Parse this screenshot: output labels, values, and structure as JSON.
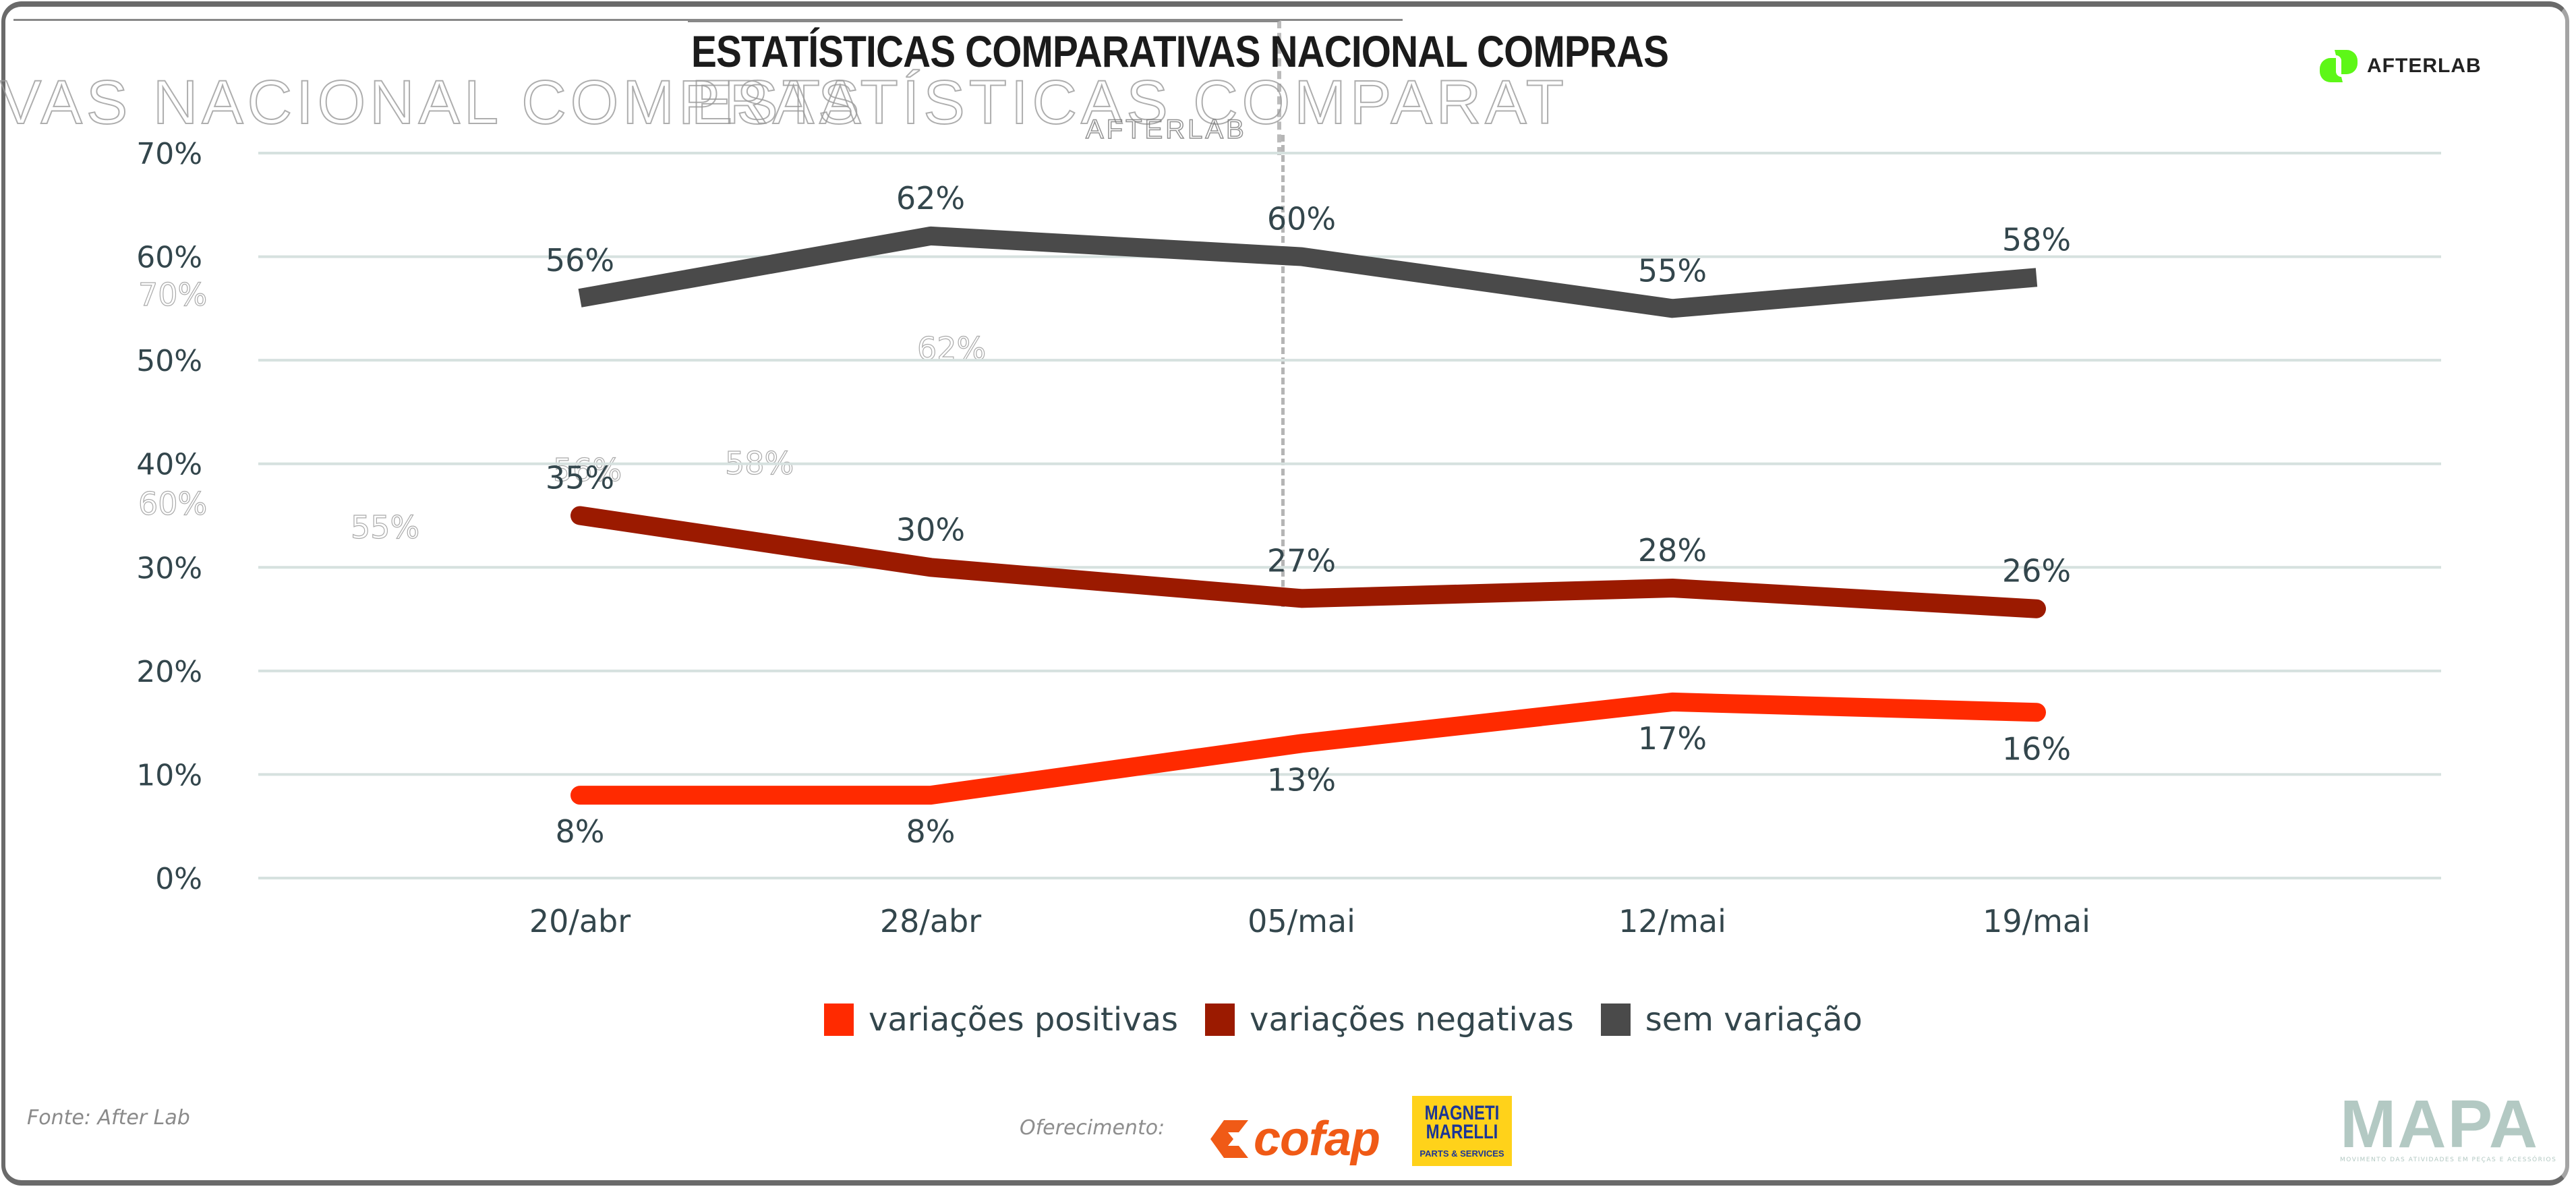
{
  "title": "ESTATÍSTICAS COMPARATIVAS NACIONAL COMPRAS",
  "brand": {
    "afterlab_label": "AFTERLAB",
    "afterlab_color": "#5df717"
  },
  "ghost_text": {
    "title_fragment_left": "VAS NACIONAL COMPRAS",
    "title_fragment_mid": "ESTATÍSTICAS COMPARAT",
    "afterlab_fragment": "AFTERLAB",
    "pct_fragments": [
      "70%",
      "60%",
      "55%",
      "56%",
      "58%",
      "62%"
    ]
  },
  "chart_data": {
    "type": "line",
    "title": "ESTATÍSTICAS COMPARATIVAS NACIONAL COMPRAS",
    "xlabel": "",
    "ylabel": "",
    "categories": [
      "20/abr",
      "28/abr",
      "05/mai",
      "12/mai",
      "19/mai"
    ],
    "yticks": [
      "0%",
      "10%",
      "20%",
      "30%",
      "40%",
      "50%",
      "60%",
      "70%"
    ],
    "ylim": [
      0,
      70
    ],
    "grid": true,
    "legend_position": "bottom",
    "series": [
      {
        "name": "variações positivas",
        "color": "#ff2a00",
        "values": [
          8,
          8,
          13,
          17,
          16
        ],
        "labels": [
          "8%",
          "8%",
          "13%",
          "17%",
          "16%"
        ],
        "label_position": "below"
      },
      {
        "name": "variações negativas",
        "color": "#9b1a00",
        "values": [
          35,
          30,
          27,
          28,
          26
        ],
        "labels": [
          "35%",
          "30%",
          "27%",
          "28%",
          "26%"
        ],
        "label_position": "above"
      },
      {
        "name": "sem variação",
        "color": "#4a4a4a",
        "values": [
          56,
          62,
          60,
          55,
          58
        ],
        "labels": [
          "56%",
          "62%",
          "60%",
          "55%",
          "58%"
        ],
        "label_position": "above"
      }
    ]
  },
  "footer": {
    "source": "Fonte: After Lab",
    "sponsor_label": "Oferecimento:",
    "sponsors": [
      {
        "name": "cofap",
        "color": "#f05a16"
      },
      {
        "name_line1": "MAGNETI",
        "name_line2": "MARELLI",
        "tagline": "PARTS & SERVICES",
        "bg_color": "#ffd21a",
        "text_color": "#1b3596"
      }
    ],
    "mapa": {
      "name": "MAPA",
      "tagline": "MOVIMENTO DAS ATIVIDADES EM PEÇAS E ACESSÓRIOS",
      "color": "#b3c9c3"
    }
  }
}
